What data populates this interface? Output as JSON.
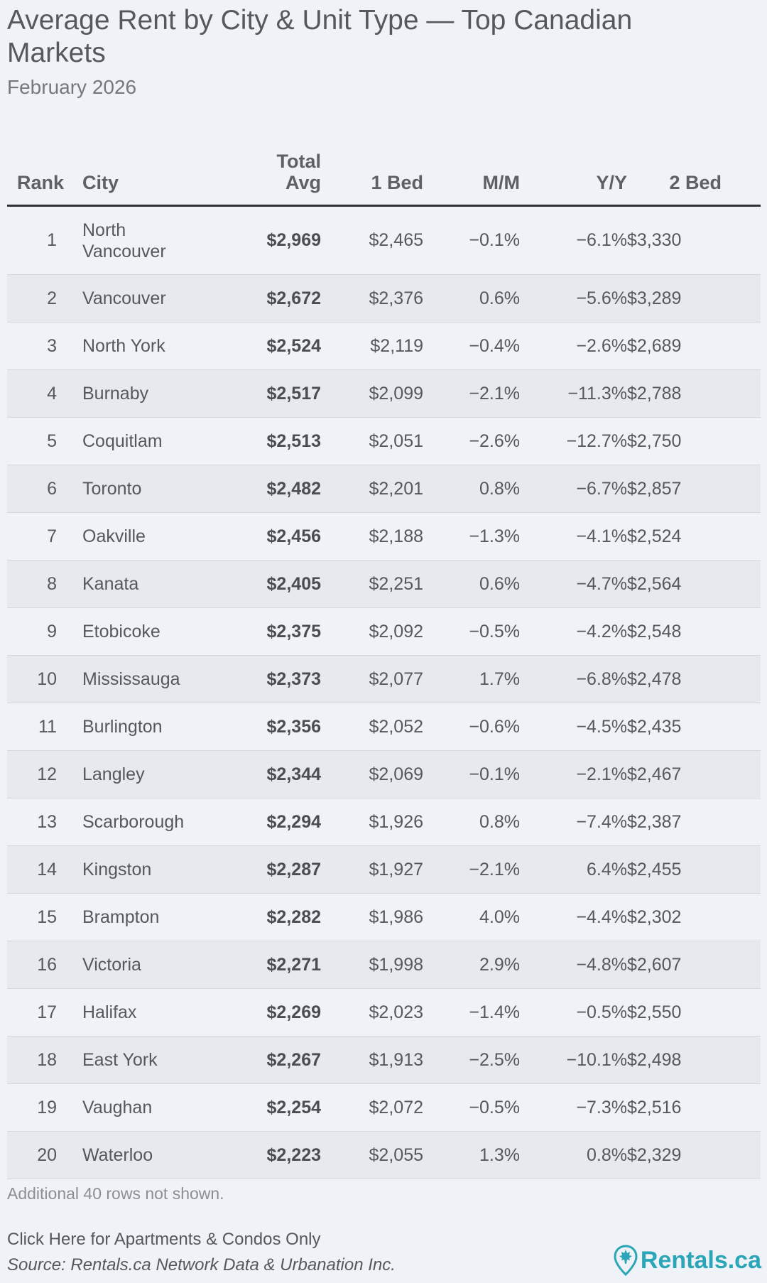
{
  "title": "Average Rent by City & Unit Type — Top Canadian Markets",
  "subtitle": "February 2026",
  "colors": {
    "background": "#eff2f6",
    "row_stripe": "#e6e9ed",
    "brand": "#2aa6b8"
  },
  "chart_data": {
    "type": "table",
    "title": "Average Rent by City & Unit Type — Top Canadian Markets",
    "subtitle": "February 2026",
    "columns": [
      "Rank",
      "City",
      "Total Avg",
      "1 Bed",
      "M/M",
      "Y/Y",
      "2 Bed"
    ],
    "header_lines": {
      "rank": "Rank",
      "city": "City",
      "total_line1": "Total",
      "total_line2": "Avg",
      "bed1": "1 Bed",
      "mm": "M/M",
      "yy": "Y/Y",
      "bed2": "2 Bed"
    },
    "rows": [
      {
        "rank": "1",
        "city": "North Vancouver",
        "total": "$2,969",
        "bed1": "$2,465",
        "mm": "−0.1%",
        "yy": "−6.1%",
        "bed2": "$3,330"
      },
      {
        "rank": "2",
        "city": "Vancouver",
        "total": "$2,672",
        "bed1": "$2,376",
        "mm": "0.6%",
        "yy": "−5.6%",
        "bed2": "$3,289"
      },
      {
        "rank": "3",
        "city": "North York",
        "total": "$2,524",
        "bed1": "$2,119",
        "mm": "−0.4%",
        "yy": "−2.6%",
        "bed2": "$2,689"
      },
      {
        "rank": "4",
        "city": "Burnaby",
        "total": "$2,517",
        "bed1": "$2,099",
        "mm": "−2.1%",
        "yy": "−11.3%",
        "bed2": "$2,788"
      },
      {
        "rank": "5",
        "city": "Coquitlam",
        "total": "$2,513",
        "bed1": "$2,051",
        "mm": "−2.6%",
        "yy": "−12.7%",
        "bed2": "$2,750"
      },
      {
        "rank": "6",
        "city": "Toronto",
        "total": "$2,482",
        "bed1": "$2,201",
        "mm": "0.8%",
        "yy": "−6.7%",
        "bed2": "$2,857"
      },
      {
        "rank": "7",
        "city": "Oakville",
        "total": "$2,456",
        "bed1": "$2,188",
        "mm": "−1.3%",
        "yy": "−4.1%",
        "bed2": "$2,524"
      },
      {
        "rank": "8",
        "city": "Kanata",
        "total": "$2,405",
        "bed1": "$2,251",
        "mm": "0.6%",
        "yy": "−4.7%",
        "bed2": "$2,564"
      },
      {
        "rank": "9",
        "city": "Etobicoke",
        "total": "$2,375",
        "bed1": "$2,092",
        "mm": "−0.5%",
        "yy": "−4.2%",
        "bed2": "$2,548"
      },
      {
        "rank": "10",
        "city": "Mississauga",
        "total": "$2,373",
        "bed1": "$2,077",
        "mm": "1.7%",
        "yy": "−6.8%",
        "bed2": "$2,478"
      },
      {
        "rank": "11",
        "city": "Burlington",
        "total": "$2,356",
        "bed1": "$2,052",
        "mm": "−0.6%",
        "yy": "−4.5%",
        "bed2": "$2,435"
      },
      {
        "rank": "12",
        "city": "Langley",
        "total": "$2,344",
        "bed1": "$2,069",
        "mm": "−0.1%",
        "yy": "−2.1%",
        "bed2": "$2,467"
      },
      {
        "rank": "13",
        "city": "Scarborough",
        "total": "$2,294",
        "bed1": "$1,926",
        "mm": "0.8%",
        "yy": "−7.4%",
        "bed2": "$2,387"
      },
      {
        "rank": "14",
        "city": "Kingston",
        "total": "$2,287",
        "bed1": "$1,927",
        "mm": "−2.1%",
        "yy": "6.4%",
        "bed2": "$2,455"
      },
      {
        "rank": "15",
        "city": "Brampton",
        "total": "$2,282",
        "bed1": "$1,986",
        "mm": "4.0%",
        "yy": "−4.4%",
        "bed2": "$2,302"
      },
      {
        "rank": "16",
        "city": "Victoria",
        "total": "$2,271",
        "bed1": "$1,998",
        "mm": "2.9%",
        "yy": "−4.8%",
        "bed2": "$2,607"
      },
      {
        "rank": "17",
        "city": "Halifax",
        "total": "$2,269",
        "bed1": "$2,023",
        "mm": "−1.4%",
        "yy": "−0.5%",
        "bed2": "$2,550"
      },
      {
        "rank": "18",
        "city": "East York",
        "total": "$2,267",
        "bed1": "$1,913",
        "mm": "−2.5%",
        "yy": "−10.1%",
        "bed2": "$2,498"
      },
      {
        "rank": "19",
        "city": "Vaughan",
        "total": "$2,254",
        "bed1": "$2,072",
        "mm": "−0.5%",
        "yy": "−7.3%",
        "bed2": "$2,516"
      },
      {
        "rank": "20",
        "city": "Waterloo",
        "total": "$2,223",
        "bed1": "$2,055",
        "mm": "1.3%",
        "yy": "0.8%",
        "bed2": "$2,329"
      }
    ]
  },
  "footer": {
    "note": "Additional 40 rows not shown.",
    "link_text": "Click Here for Apartments & Condos Only",
    "source": "Source: Rentals.ca Network Data & Urbanation Inc.",
    "logo_text": "Rentals.ca",
    "logo_icon": "maple-leaf-pin-icon"
  }
}
